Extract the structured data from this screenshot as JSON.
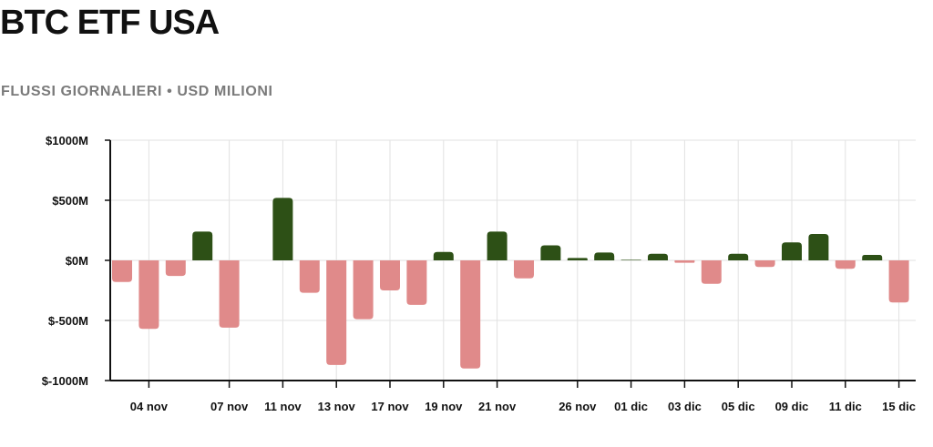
{
  "header": {
    "title": "BTC ETF USA",
    "subtitle": "FLUSSI GIORNALIERI • USD MILIONI"
  },
  "colors": {
    "positive": "#2d5016",
    "negative": "#e08a8a",
    "grid": "#e2e2e2",
    "axis": "#111111"
  },
  "chart_data": {
    "type": "bar",
    "title": "BTC ETF USA",
    "subtitle": "FLUSSI GIORNALIERI • USD MILIONI",
    "ylim": [
      -1000,
      1000
    ],
    "y_ticks": [
      {
        "value": 1000,
        "label": "$1000M"
      },
      {
        "value": 500,
        "label": "$500M"
      },
      {
        "value": 0,
        "label": "$0M"
      },
      {
        "value": -500,
        "label": "$-500M"
      },
      {
        "value": -1000,
        "label": "$-1000M"
      }
    ],
    "x_tick_labels": [
      {
        "index": 1,
        "label": "04 nov"
      },
      {
        "index": 4,
        "label": "07 nov"
      },
      {
        "index": 6,
        "label": "11 nov"
      },
      {
        "index": 8,
        "label": "13 nov"
      },
      {
        "index": 10,
        "label": "17 nov"
      },
      {
        "index": 12,
        "label": "19 nov"
      },
      {
        "index": 14,
        "label": "21 nov"
      },
      {
        "index": 17,
        "label": "26 nov"
      },
      {
        "index": 19,
        "label": "01 dic"
      },
      {
        "index": 21,
        "label": "03 dic"
      },
      {
        "index": 23,
        "label": "05 dic"
      },
      {
        "index": 25,
        "label": "09 dic"
      },
      {
        "index": 27,
        "label": "11 dic"
      },
      {
        "index": 29,
        "label": "15 dic"
      }
    ],
    "values": [
      -180,
      -570,
      -130,
      240,
      -560,
      0,
      520,
      -270,
      -870,
      -490,
      -250,
      -370,
      70,
      -900,
      240,
      -150,
      125,
      20,
      65,
      5,
      55,
      -20,
      -195,
      55,
      -55,
      150,
      220,
      -70,
      45,
      -350
    ],
    "grid": true,
    "legend": "none"
  }
}
